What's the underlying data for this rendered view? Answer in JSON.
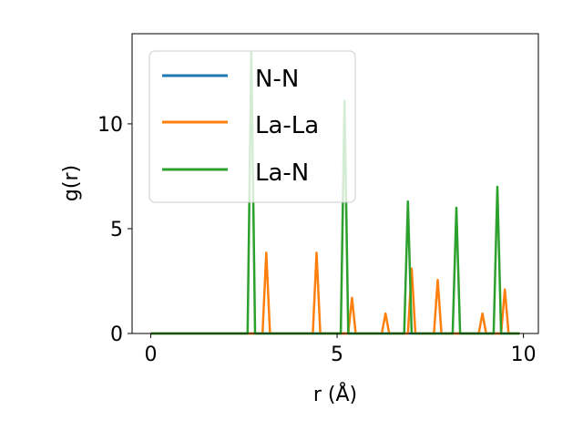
{
  "chart_data": {
    "type": "line",
    "title": "",
    "xlabel": "r (Å)",
    "ylabel": "g(r)",
    "xlim": [
      -0.5,
      10.4
    ],
    "ylim": [
      0,
      14.3
    ],
    "xticks": [
      0,
      5,
      10
    ],
    "yticks": [
      0,
      5,
      10
    ],
    "x_tick_labels": [
      "0",
      "5",
      "10"
    ],
    "y_tick_labels": [
      "0",
      "5",
      "10"
    ],
    "legend_position": "upper-left",
    "grid": false,
    "series": [
      {
        "name": "N-N",
        "color": "#1f77b4",
        "points": [
          [
            0,
            0
          ],
          [
            9.9,
            0
          ]
        ]
      },
      {
        "name": "La-La",
        "color": "#ff7f0e",
        "points": [
          [
            0,
            0
          ],
          [
            3.0,
            0
          ],
          [
            3.1,
            3.85
          ],
          [
            3.2,
            0
          ],
          [
            4.35,
            0
          ],
          [
            4.45,
            3.85
          ],
          [
            4.55,
            0
          ],
          [
            5.3,
            0
          ],
          [
            5.4,
            1.7
          ],
          [
            5.5,
            0
          ],
          [
            6.2,
            0
          ],
          [
            6.3,
            0.95
          ],
          [
            6.4,
            0
          ],
          [
            6.9,
            0
          ],
          [
            7.0,
            3.1
          ],
          [
            7.1,
            0
          ],
          [
            7.6,
            0
          ],
          [
            7.7,
            2.55
          ],
          [
            7.8,
            0
          ],
          [
            8.8,
            0
          ],
          [
            8.9,
            0.95
          ],
          [
            9.0,
            0
          ],
          [
            9.4,
            0
          ],
          [
            9.5,
            2.1
          ],
          [
            9.6,
            0
          ],
          [
            9.9,
            0
          ]
        ]
      },
      {
        "name": "La-N",
        "color": "#2ca02c",
        "points": [
          [
            0,
            0
          ],
          [
            2.6,
            0
          ],
          [
            2.7,
            13.4
          ],
          [
            2.8,
            0
          ],
          [
            5.1,
            0
          ],
          [
            5.2,
            11.1
          ],
          [
            5.3,
            0
          ],
          [
            6.8,
            0
          ],
          [
            6.9,
            6.3
          ],
          [
            7.0,
            0
          ],
          [
            8.1,
            0
          ],
          [
            8.2,
            6.0
          ],
          [
            8.3,
            0
          ],
          [
            9.2,
            0
          ],
          [
            9.3,
            7.0
          ],
          [
            9.4,
            0
          ],
          [
            9.9,
            0
          ]
        ]
      }
    ]
  }
}
